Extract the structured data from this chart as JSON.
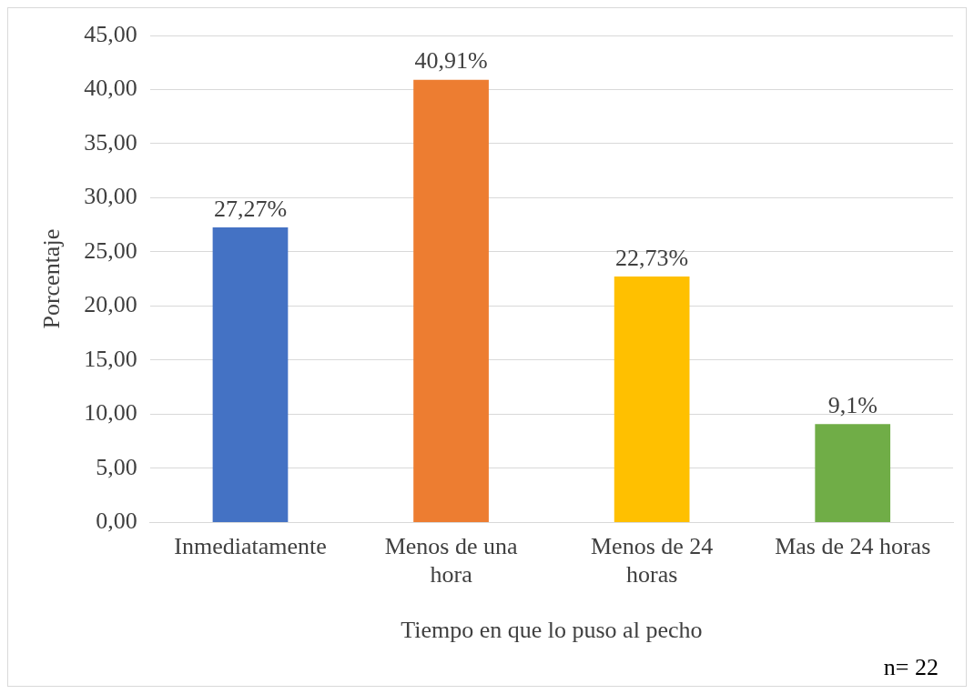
{
  "chart_data": {
    "type": "bar",
    "xlabel": "Tiempo en que lo puso al pecho",
    "ylabel": "Porcentaje",
    "categories": [
      "Inmediatamente",
      "Menos de una hora",
      "Menos de 24 horas",
      "Mas de 24 horas"
    ],
    "values": [
      27.27,
      40.91,
      22.73,
      9.1
    ],
    "colors": [
      "#4472c4",
      "#ed7d31",
      "#ffc000",
      "#70ad47"
    ],
    "value_labels": [
      "27,27%",
      "40,91%",
      "22,73%",
      "9,1%"
    ],
    "ylim": [
      0,
      45
    ],
    "yticks": [
      {
        "value": 0,
        "label": "0,00"
      },
      {
        "value": 5,
        "label": "5,00"
      },
      {
        "value": 10,
        "label": "10,00"
      },
      {
        "value": 15,
        "label": "15,00"
      },
      {
        "value": 20,
        "label": "20,00"
      },
      {
        "value": 25,
        "label": "25,00"
      },
      {
        "value": 30,
        "label": "30,00"
      },
      {
        "value": 35,
        "label": "35,00"
      },
      {
        "value": 40,
        "label": "40,00"
      },
      {
        "value": 45,
        "label": "45,00"
      }
    ],
    "grid": "y",
    "legend": false,
    "annotations": [
      "n= 22"
    ]
  }
}
